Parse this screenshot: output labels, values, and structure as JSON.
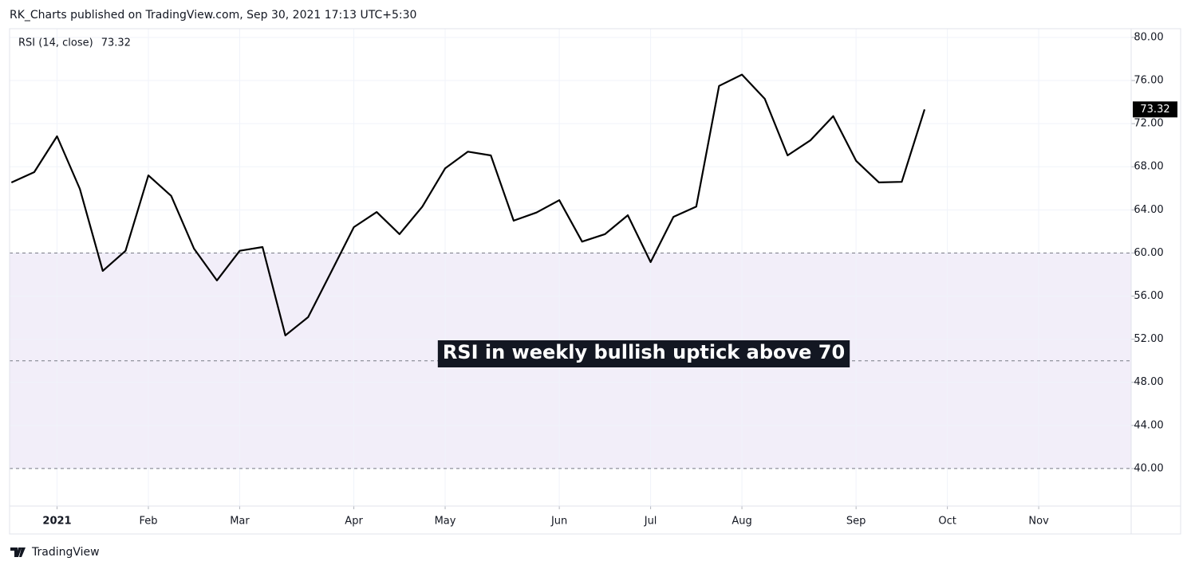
{
  "header": "RK_Charts published on TradingView.com, Sep 30, 2021 17:13 UTC+5:30",
  "footer": "TradingView",
  "chart_data": {
    "type": "line",
    "annotation": "RSI in weekly bullish uptick above 70",
    "x": [
      0,
      1,
      2,
      3,
      4,
      5,
      6,
      7,
      8,
      9,
      10,
      11,
      12,
      13,
      14,
      15,
      16,
      17,
      18,
      19,
      20,
      21,
      22,
      23,
      24,
      25,
      26,
      27,
      28,
      29,
      30,
      31,
      32,
      33,
      34,
      35,
      36,
      37,
      38,
      39,
      40
    ],
    "series": [
      {
        "name": "RSI (14, close)",
        "color": "#000000",
        "values": [
          66.54,
          67.5,
          70.83,
          65.95,
          58.34,
          60.2,
          67.2,
          65.3,
          60.4,
          57.45,
          60.2,
          60.55,
          52.35,
          54.05,
          58.2,
          62.4,
          63.8,
          61.75,
          64.3,
          67.85,
          69.4,
          69.05,
          63.0,
          63.75,
          64.9,
          61.05,
          61.75,
          63.5,
          59.15,
          63.35,
          64.3,
          75.5,
          76.55,
          74.3,
          69.05,
          70.45,
          72.7,
          68.55,
          66.55,
          66.6,
          73.32
        ]
      }
    ],
    "xlim": [
      -0.08,
      49.05
    ],
    "xticks": [
      {
        "value": 2,
        "label": "2021"
      },
      {
        "value": 6,
        "label": "Feb"
      },
      {
        "value": 10,
        "label": "Mar"
      },
      {
        "value": 15,
        "label": "Apr"
      },
      {
        "value": 19,
        "label": "May"
      },
      {
        "value": 24,
        "label": "Jun"
      },
      {
        "value": 28,
        "label": "Jul"
      },
      {
        "value": 32,
        "label": "Aug"
      },
      {
        "value": 37,
        "label": "Sep"
      },
      {
        "value": 41,
        "label": "Oct"
      },
      {
        "value": 45,
        "label": "Nov"
      }
    ],
    "ylim": [
      36.52,
      80.81
    ],
    "yticks": [
      {
        "value": 40,
        "label": "40.00"
      },
      {
        "value": 44,
        "label": "44.00"
      },
      {
        "value": 48,
        "label": "48.00"
      },
      {
        "value": 52,
        "label": "52.00"
      },
      {
        "value": 56,
        "label": "56.00"
      },
      {
        "value": 60,
        "label": "60.00"
      },
      {
        "value": 64,
        "label": "64.00"
      },
      {
        "value": 68,
        "label": "68.00"
      },
      {
        "value": 72,
        "label": "72.00"
      },
      {
        "value": 76,
        "label": "76.00"
      },
      {
        "value": 80,
        "label": "80.00"
      }
    ],
    "grid": true,
    "band": {
      "upper": 60,
      "middle": 50,
      "lower": 40,
      "color": "#7e57c2"
    }
  }
}
